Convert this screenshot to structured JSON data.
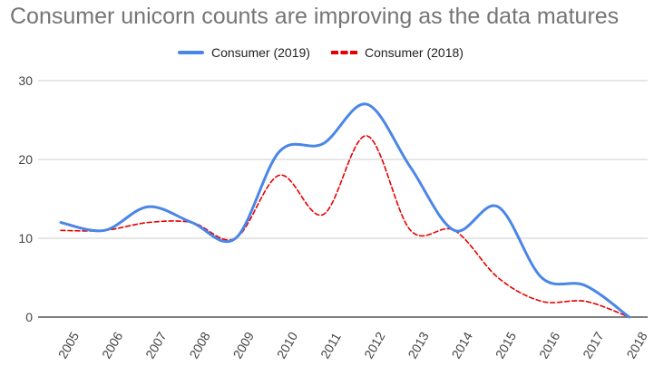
{
  "chart_data": {
    "type": "line",
    "title": "Consumer unicorn counts are improving as the data matures",
    "x": [
      "2005",
      "2006",
      "2007",
      "2008",
      "2009",
      "2010",
      "2011",
      "2012",
      "2013",
      "2014",
      "2015",
      "2016",
      "2017",
      "2018"
    ],
    "series": [
      {
        "name": "Consumer (2019)",
        "color": "#4a86e8",
        "style": "solid",
        "values": [
          12,
          11,
          14,
          12,
          10,
          21,
          22,
          27,
          19,
          11,
          14,
          5,
          4,
          0
        ]
      },
      {
        "name": "Consumer (2018)",
        "color": "#e60000",
        "style": "dashed",
        "values": [
          11,
          11,
          12,
          12,
          10,
          18,
          13,
          23,
          11,
          11,
          5,
          2,
          2,
          0
        ]
      }
    ],
    "ylim": [
      0,
      30
    ],
    "yticks": [
      0,
      10,
      20,
      30
    ],
    "xlabel": "",
    "ylabel": "",
    "grid": true,
    "legend_position": "top"
  }
}
